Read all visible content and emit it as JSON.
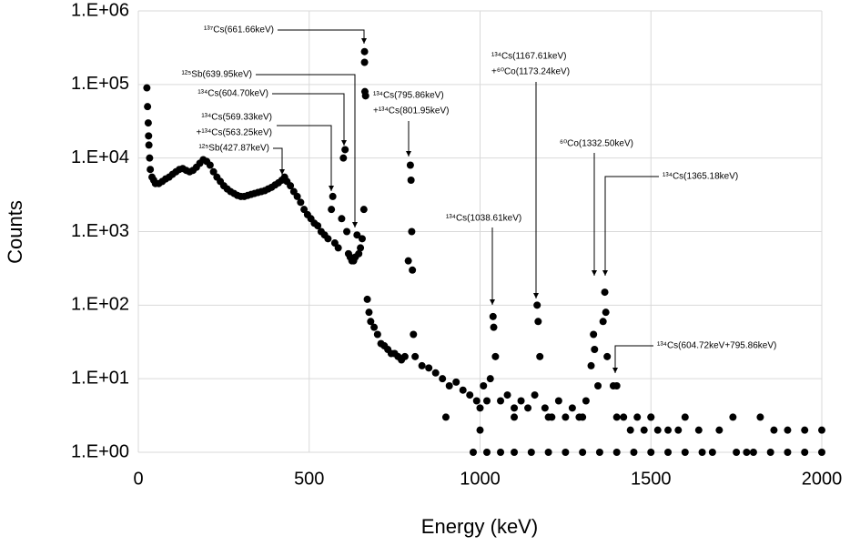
{
  "chart_data": {
    "type": "scatter",
    "x_label": "Energy (keV)",
    "y_label": "Counts",
    "color": "#000000",
    "log_y": true,
    "grid": true,
    "xlim": [
      0,
      2000
    ],
    "xticks": [
      0,
      500,
      1000,
      1500,
      2000
    ],
    "ylim": [
      1,
      1000000
    ],
    "yticks": [
      {
        "value": 1,
        "label": "1.E+00"
      },
      {
        "value": 10,
        "label": "1.E+01"
      },
      {
        "value": 100,
        "label": "1.E+02"
      },
      {
        "value": 1000,
        "label": "1.E+03"
      },
      {
        "value": 10000,
        "label": "1.E+04"
      },
      {
        "value": 100000,
        "label": "1.E+05"
      },
      {
        "value": 1000000,
        "label": "1.E+06"
      }
    ],
    "annotations": [
      {
        "lines": [
          "¹³⁷Cs(661.66keV)"
        ]
      },
      {
        "lines": [
          "¹²⁵Sb(639.95keV)"
        ]
      },
      {
        "lines": [
          "¹³⁴Cs(604.70keV)"
        ]
      },
      {
        "lines": [
          "¹³⁴Cs(569.33keV)",
          "+¹³⁴Cs(563.25keV)"
        ]
      },
      {
        "lines": [
          "¹²⁵Sb(427.87keV)"
        ]
      },
      {
        "lines": [
          "¹³⁴Cs(795.86keV)",
          "+¹³⁴Cs(801.95keV)"
        ]
      },
      {
        "lines": [
          "¹³⁴Cs(1167.61keV)",
          "+⁶⁰Co(1173.24keV)"
        ]
      },
      {
        "lines": [
          "⁶⁰Co(1332.50keV)"
        ]
      },
      {
        "lines": [
          "¹³⁴Cs(1365.18keV)"
        ]
      },
      {
        "lines": [
          "¹³⁴Cs(1038.61keV)"
        ]
      },
      {
        "lines": [
          "¹³⁴Cs(604.72keV+795.86keV)"
        ]
      }
    ],
    "x": [
      25,
      27,
      29,
      30,
      31,
      33,
      35,
      40,
      45,
      50,
      60,
      70,
      80,
      90,
      100,
      110,
      120,
      130,
      140,
      150,
      160,
      170,
      180,
      190,
      200,
      210,
      220,
      230,
      240,
      250,
      260,
      270,
      280,
      290,
      300,
      310,
      320,
      330,
      340,
      350,
      360,
      370,
      380,
      390,
      400,
      410,
      420,
      428,
      435,
      445,
      455,
      465,
      475,
      485,
      495,
      505,
      515,
      525,
      535,
      545,
      555,
      565,
      569,
      575,
      585,
      595,
      600,
      605,
      610,
      615,
      620,
      625,
      630,
      635,
      640,
      645,
      650,
      655,
      660,
      662,
      662,
      663,
      665,
      670,
      675,
      680,
      690,
      700,
      710,
      720,
      730,
      740,
      750,
      760,
      770,
      780,
      790,
      796,
      798,
      800,
      802,
      805,
      810,
      830,
      850,
      870,
      890,
      910,
      930,
      950,
      970,
      990,
      1000,
      1010,
      1020,
      1030,
      1038,
      1040,
      1045,
      1060,
      1080,
      1100,
      1120,
      1140,
      1160,
      1167,
      1170,
      1175,
      1190,
      1210,
      1230,
      1250,
      1270,
      1290,
      1310,
      1325,
      1332,
      1335,
      1345,
      1360,
      1365,
      1368,
      1372,
      1390,
      1400,
      1420,
      1440,
      1460,
      1480,
      1500,
      1520,
      1550,
      1580,
      1600,
      1640,
      1680,
      1700,
      1740,
      1780,
      1820,
      1860,
      1900,
      1950,
      2000,
      980,
      1020,
      1060,
      1100,
      1150,
      1200,
      1250,
      1300,
      1350,
      1400,
      1450,
      1500,
      1550,
      1650,
      1750,
      1800,
      1850,
      1900,
      1950,
      2000,
      900,
      1000,
      1100,
      1200,
      1300,
      1400,
      1500,
      1600
    ],
    "values": [
      90000,
      50000,
      30000,
      20000,
      15000,
      10000,
      7000,
      5500,
      5000,
      4500,
      4500,
      4800,
      5200,
      5500,
      6000,
      6500,
      7000,
      7200,
      6800,
      6500,
      6800,
      7500,
      8500,
      9500,
      9000,
      8000,
      6500,
      5500,
      4800,
      4200,
      3800,
      3500,
      3300,
      3100,
      3000,
      3000,
      3100,
      3200,
      3300,
      3400,
      3500,
      3600,
      3800,
      4000,
      4300,
      4600,
      5000,
      5500,
      4800,
      4200,
      3500,
      3000,
      2500,
      2000,
      1700,
      1500,
      1300,
      1200,
      1000,
      900,
      800,
      2000,
      3000,
      700,
      600,
      1500,
      10000,
      13000,
      1000,
      500,
      450,
      400,
      400,
      450,
      900,
      500,
      600,
      800,
      2000,
      280000,
      200000,
      80000,
      70000,
      120,
      80,
      60,
      50,
      40,
      30,
      28,
      25,
      22,
      22,
      20,
      18,
      20,
      400,
      8000,
      5000,
      1000,
      300,
      40,
      20,
      15,
      14,
      12,
      10,
      8,
      9,
      7,
      6,
      5,
      4,
      8,
      5,
      10,
      70,
      50,
      20,
      5,
      6,
      4,
      5,
      4,
      6,
      100,
      60,
      20,
      4,
      3,
      5,
      3,
      4,
      3,
      5,
      15,
      40,
      25,
      8,
      60,
      150,
      80,
      20,
      8,
      8,
      3,
      2,
      3,
      2,
      3,
      2,
      2,
      2,
      1,
      2,
      1,
      2,
      3,
      1,
      3,
      2,
      2,
      2,
      2,
      1,
      1,
      1,
      1,
      1,
      1,
      1,
      1,
      1,
      1,
      1,
      1,
      1,
      1,
      1,
      1,
      1,
      1,
      1,
      1,
      3,
      2,
      3,
      3,
      3,
      3,
      3,
      3
    ]
  }
}
